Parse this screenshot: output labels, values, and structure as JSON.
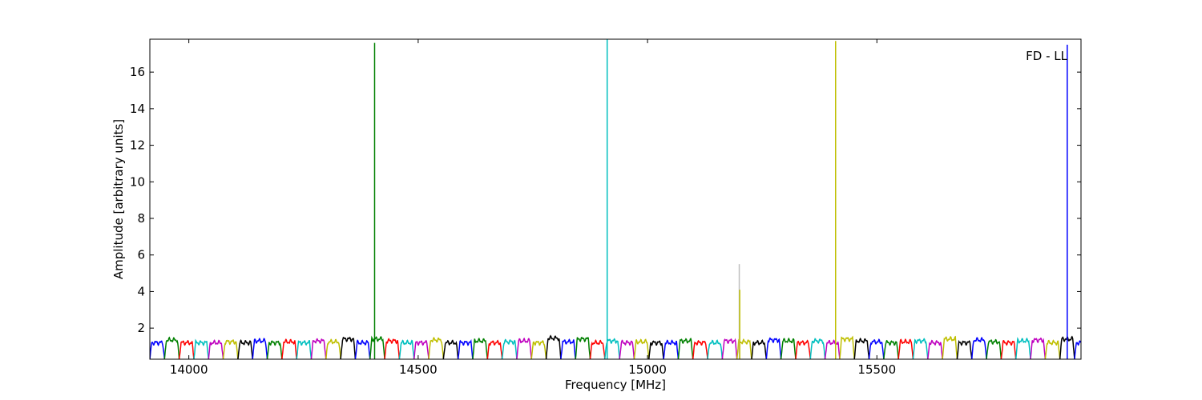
{
  "chart_data": {
    "type": "line",
    "title": "",
    "annotation": "FD - LL",
    "xlabel": "Frequency [MHz]",
    "ylabel": "Amplitude [arbitrary units]",
    "xlim": [
      13915,
      15945
    ],
    "ylim": [
      0.3,
      17.8
    ],
    "xticks": [
      14000,
      14500,
      15000,
      15500
    ],
    "xtick_labels": [
      "14000",
      "14500",
      "15000",
      "15500"
    ],
    "yticks": [
      2,
      4,
      6,
      8,
      10,
      12,
      14,
      16
    ],
    "ytick_labels": [
      "2",
      "4",
      "6",
      "8",
      "10",
      "12",
      "14",
      "16"
    ],
    "grid": false,
    "channel_width_mhz": 32,
    "channel_start_mhz": 13915,
    "channel_count": 64,
    "channel_baseline": 0.3,
    "channel_peak_levels": [
      1.2,
      1.35,
      1.2,
      1.2,
      1.2,
      1.25,
      1.2,
      1.3,
      1.2,
      1.25,
      1.2,
      1.3,
      1.25,
      1.4,
      1.2,
      1.4,
      1.3,
      1.2,
      1.2,
      1.35,
      1.2,
      1.2,
      1.3,
      1.2,
      1.25,
      1.3,
      1.2,
      1.45,
      1.25,
      1.4,
      1.2,
      1.3,
      1.2,
      1.25,
      1.2,
      1.2,
      1.3,
      1.2,
      1.2,
      1.3,
      1.25,
      1.2,
      1.35,
      1.3,
      1.2,
      1.3,
      1.2,
      1.4,
      1.3,
      1.25,
      1.2,
      1.25,
      1.3,
      1.2,
      1.4,
      1.2,
      1.35,
      1.25,
      1.2,
      1.3,
      1.35,
      1.2,
      1.4,
      1.2
    ],
    "series_colors": [
      "#0000ff",
      "#008000",
      "#ff0000",
      "#00bfbf",
      "#bf00bf",
      "#bfbf00",
      "#000000"
    ],
    "spikes": [
      {
        "x": 14405,
        "y": 17.6,
        "color": "#008000"
      },
      {
        "x": 14912,
        "y": 17.8,
        "color": "#00bfbf"
      },
      {
        "x": 15200,
        "y": 5.5,
        "color": "#bfbfbf"
      },
      {
        "x": 15201,
        "y": 4.1,
        "color": "#bfbf00"
      },
      {
        "x": 15410,
        "y": 17.7,
        "color": "#bfbf00"
      },
      {
        "x": 15915,
        "y": 17.5,
        "color": "#0000ff"
      }
    ]
  }
}
